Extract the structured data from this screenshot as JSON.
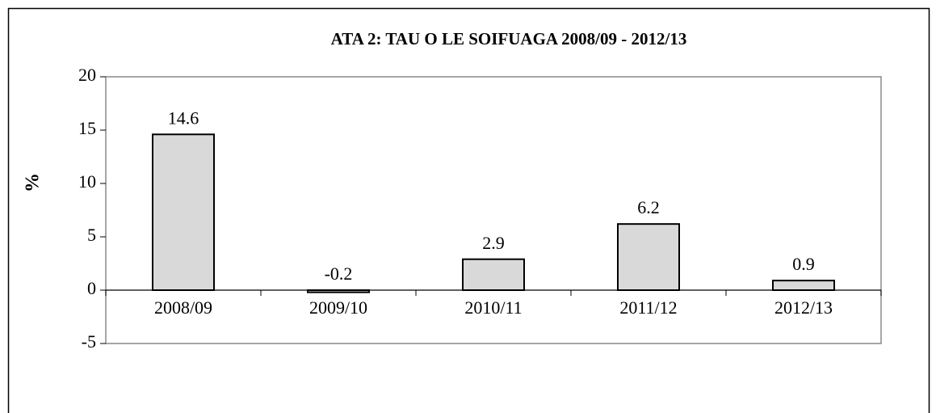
{
  "chart_data": {
    "type": "bar",
    "title": "ATA 2: TAU O LE SOIFUAGA 2008/09 - 2012/13",
    "y_label": "%",
    "categories": [
      "2008/09",
      "2009/10",
      "2010/11",
      "2011/12",
      "2012/13"
    ],
    "values": [
      14.6,
      -0.2,
      2.9,
      6.2,
      0.9
    ],
    "color": "#d9d9d9",
    "ylim": [
      -5,
      20
    ],
    "yticks": [
      -5,
      0,
      5,
      10,
      15,
      20
    ],
    "grid": false,
    "legend": false
  }
}
